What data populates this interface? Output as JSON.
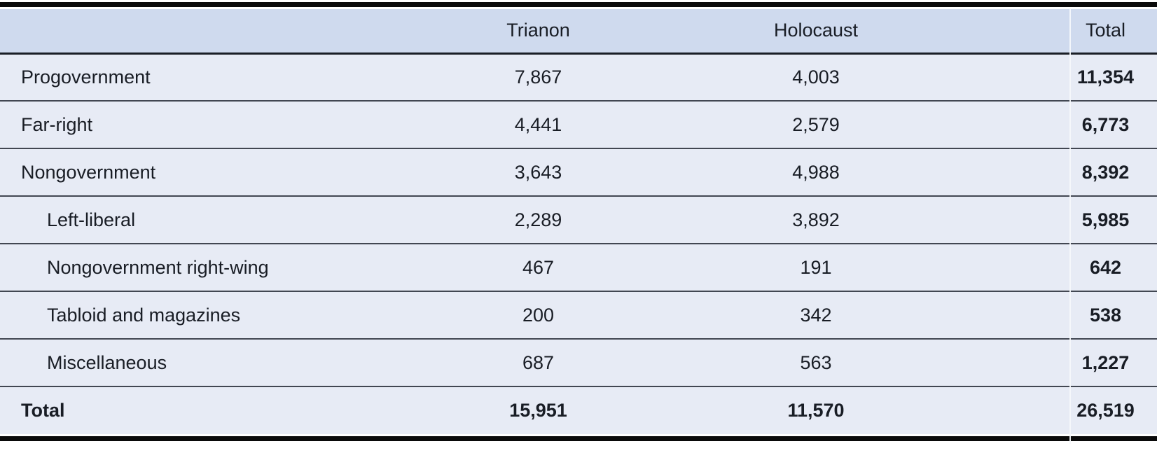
{
  "table": {
    "columns": [
      "",
      "Trianon",
      "Holocaust",
      "Total"
    ],
    "rows": [
      {
        "label": "Progovernment",
        "indent": false,
        "trianon": "7,867",
        "holocaust": "4,003",
        "total": "11,354"
      },
      {
        "label": "Far-right",
        "indent": false,
        "trianon": "4,441",
        "holocaust": "2,579",
        "total": "6,773"
      },
      {
        "label": "Nongovernment",
        "indent": false,
        "trianon": "3,643",
        "holocaust": "4,988",
        "total": "8,392"
      },
      {
        "label": "Left-liberal",
        "indent": true,
        "trianon": "2,289",
        "holocaust": "3,892",
        "total": "5,985"
      },
      {
        "label": "Nongovernment right-wing",
        "indent": true,
        "trianon": "467",
        "holocaust": "191",
        "total": "642"
      },
      {
        "label": "Tabloid and magazines",
        "indent": true,
        "trianon": "200",
        "holocaust": "342",
        "total": "538"
      },
      {
        "label": "Miscellaneous",
        "indent": true,
        "trianon": "687",
        "holocaust": "563",
        "total": "1,227"
      },
      {
        "label": "Total",
        "indent": false,
        "trianon": "15,951",
        "holocaust": "11,570",
        "total": "26,519"
      }
    ]
  },
  "chart_data": {
    "type": "table",
    "categories": [
      "Progovernment",
      "Far-right",
      "Nongovernment",
      "Left-liberal",
      "Nongovernment right-wing",
      "Tabloid and magazines",
      "Miscellaneous",
      "Total"
    ],
    "series": [
      {
        "name": "Trianon",
        "values": [
          7867,
          4441,
          3643,
          2289,
          467,
          200,
          687,
          15951
        ]
      },
      {
        "name": "Holocaust",
        "values": [
          4003,
          2579,
          4988,
          3892,
          191,
          342,
          563,
          11570
        ]
      },
      {
        "name": "Total",
        "values": [
          11354,
          6773,
          8392,
          5985,
          642,
          538,
          1227,
          26519
        ]
      }
    ],
    "title": ""
  },
  "colors": {
    "header_bg": "#cfdaee",
    "row_bg": "#e7ebf5",
    "rule_heavy": "#0a0a0a",
    "rule_dark": "#1a1e26",
    "row_line": "#424752",
    "text": "#191d25",
    "divider": "#f6f8fc",
    "page_bg": "#ffffff"
  }
}
